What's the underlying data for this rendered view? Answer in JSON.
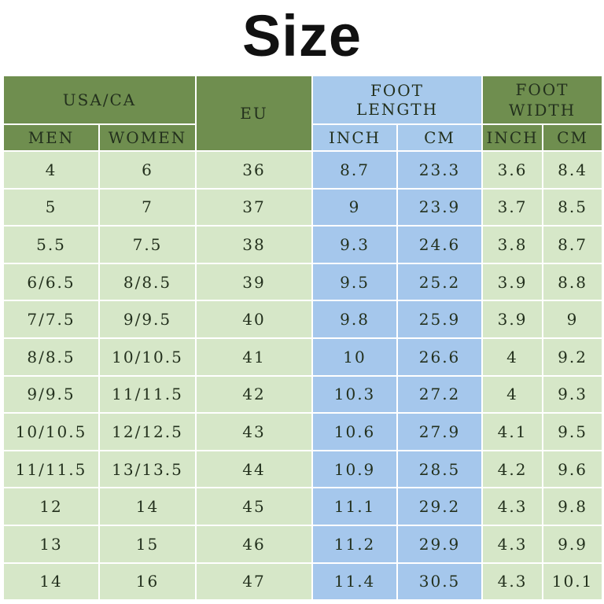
{
  "title": "Size",
  "headers": {
    "usa_ca": "USA/CA",
    "eu": "EU",
    "foot_length_line1": "FOOT",
    "foot_length_line2": "LENGTH",
    "foot_width_line1": "FOOT",
    "foot_width_line2": "WIDTH",
    "men": "MEN",
    "women": "WOMEN",
    "length_inch": "INCH",
    "length_cm": "CM",
    "width_inch": "INCH",
    "width_cm": "CM"
  },
  "rows": [
    [
      "4",
      "6",
      "36",
      "8.7",
      "23.3",
      "3.6",
      "8.4"
    ],
    [
      "5",
      "7",
      "37",
      "9",
      "23.9",
      "3.7",
      "8.5"
    ],
    [
      "5.5",
      "7.5",
      "38",
      "9.3",
      "24.6",
      "3.8",
      "8.7"
    ],
    [
      "6/6.5",
      "8/8.5",
      "39",
      "9.5",
      "25.2",
      "3.9",
      "8.8"
    ],
    [
      "7/7.5",
      "9/9.5",
      "40",
      "9.8",
      "25.9",
      "3.9",
      "9"
    ],
    [
      "8/8.5",
      "10/10.5",
      "41",
      "10",
      "26.6",
      "4",
      "9.2"
    ],
    [
      "9/9.5",
      "11/11.5",
      "42",
      "10.3",
      "27.2",
      "4",
      "9.3"
    ],
    [
      "10/10.5",
      "12/12.5",
      "43",
      "10.6",
      "27.9",
      "4.1",
      "9.5"
    ],
    [
      "11/11.5",
      "13/13.5",
      "44",
      "10.9",
      "28.5",
      "4.2",
      "9.6"
    ],
    [
      "12",
      "14",
      "45",
      "11.1",
      "29.2",
      "4.3",
      "9.8"
    ],
    [
      "13",
      "15",
      "46",
      "11.2",
      "29.9",
      "4.3",
      "9.9"
    ],
    [
      "14",
      "16",
      "47",
      "11.4",
      "30.5",
      "4.3",
      "10.1"
    ]
  ],
  "colors": {
    "header_green": "#6f8e4f",
    "header_blue": "#a7c9ec",
    "cell_green": "#d6e7c8",
    "cell_blue": "#a5c7ec"
  }
}
